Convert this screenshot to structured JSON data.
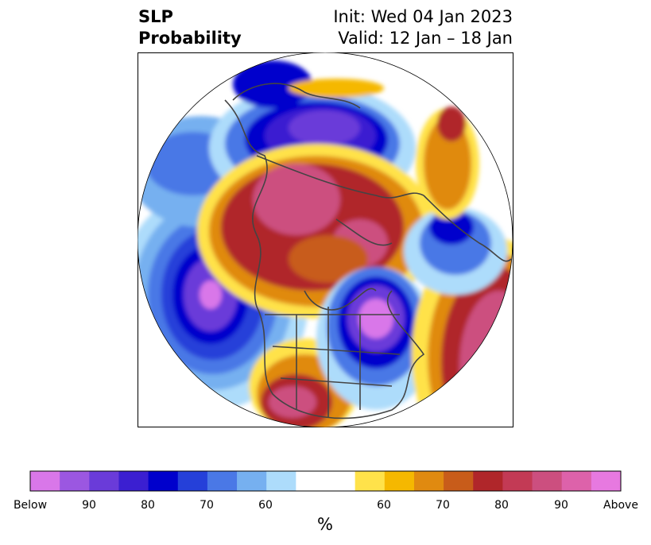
{
  "header": {
    "title_line1": "SLP",
    "title_line2": "Probability",
    "init": "Init: Wed 04 Jan 2023",
    "valid": "Valid: 12 Jan – 18 Jan"
  },
  "colorbar": {
    "unit_label": "%",
    "tick_labels": [
      "Below",
      "90",
      "80",
      "70",
      "60",
      "60",
      "70",
      "80",
      "90",
      "Above"
    ],
    "below_colors": [
      "#d977e9",
      "#9b57e1",
      "#6a3bd9",
      "#3b1fd1",
      "#0000cc",
      "#2540d9",
      "#4a78e6",
      "#76b0f0",
      "#addcfb"
    ],
    "neutral_color": "#ffffff",
    "above_colors": [
      "#ffe24a",
      "#f5b800",
      "#e08a10",
      "#c85c1a",
      "#b0262a",
      "#c33a55",
      "#cc4f7f",
      "#dd62aa",
      "#e779e0"
    ]
  },
  "map": {
    "projection": "north-polar-stereographic",
    "features": [
      "coastlines",
      "country-borders",
      "state-borders"
    ]
  }
}
